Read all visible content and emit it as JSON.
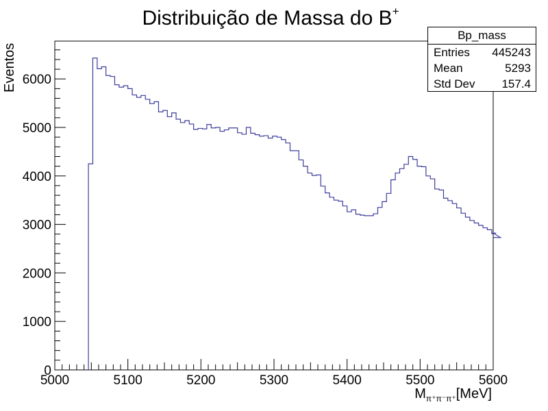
{
  "chart_data": {
    "type": "histogram",
    "title": "Distribuição de Massa do B",
    "title_superscript": "+",
    "xlabel_main": "M",
    "xlabel_subscript": "π⁺π⁻π⁺",
    "xlabel_unit": "[MeV]",
    "ylabel": "Eventos",
    "xlim": [
      5000,
      5600
    ],
    "ylim": [
      0,
      6780
    ],
    "x_ticks": [
      "5000",
      "5100",
      "5200",
      "5300",
      "5400",
      "5500",
      "5600"
    ],
    "x_tick_values": [
      5000,
      5100,
      5200,
      5300,
      5400,
      5500,
      5600
    ],
    "y_ticks": [
      "0",
      "1000",
      "2000",
      "3000",
      "4000",
      "5000",
      "6000"
    ],
    "y_tick_values": [
      0,
      1000,
      2000,
      3000,
      4000,
      5000,
      6000
    ],
    "line_color": "#3c3c9c",
    "bin_width": 6,
    "bin_start": 5046,
    "values": [
      4250,
      6430,
      6210,
      6250,
      6070,
      6050,
      5880,
      5830,
      5860,
      5800,
      5670,
      5620,
      5660,
      5580,
      5490,
      5530,
      5320,
      5350,
      5220,
      5300,
      5170,
      5100,
      5140,
      5070,
      4960,
      4980,
      4970,
      5060,
      4990,
      5000,
      4920,
      4950,
      4990,
      4990,
      4890,
      4860,
      5000,
      4880,
      4850,
      4820,
      4830,
      4780,
      4820,
      4800,
      4750,
      4680,
      4520,
      4520,
      4330,
      4200,
      4060,
      4010,
      4020,
      3790,
      3650,
      3560,
      3500,
      3480,
      3380,
      3260,
      3300,
      3210,
      3190,
      3180,
      3180,
      3220,
      3350,
      3470,
      3640,
      3920,
      4060,
      4150,
      4240,
      4400,
      4340,
      4200,
      4190,
      4000,
      3940,
      3730,
      3710,
      3540,
      3490,
      3430,
      3340,
      3230,
      3150,
      3080,
      3030,
      2980,
      2930,
      2890,
      2810,
      2820,
      2730
    ]
  },
  "stats_box": {
    "name": "Bp_mass",
    "entries_label": "Entries",
    "entries_value": "445243",
    "mean_label": "Mean",
    "mean_value": "5293",
    "stddev_label": "Std Dev",
    "stddev_value": "157.4"
  }
}
